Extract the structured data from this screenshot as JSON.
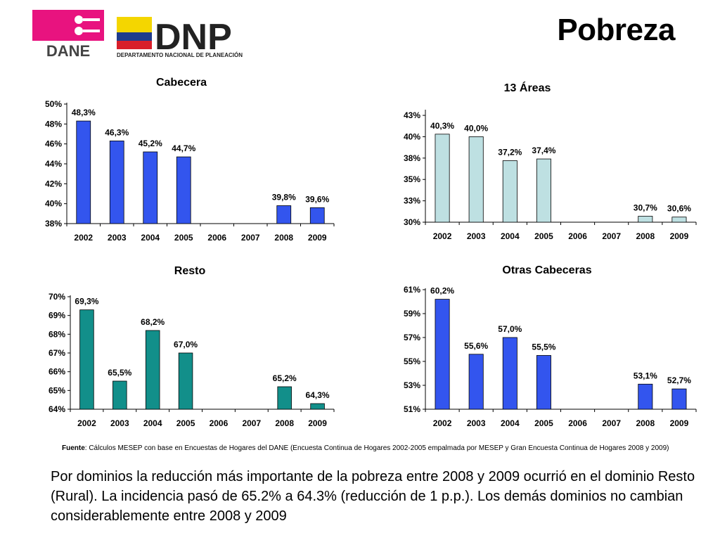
{
  "header": {
    "title": "Pobreza",
    "logo_dane_text": "DANE",
    "logo_dnp_text": "DNP",
    "logo_dnp_subtitle": "DEPARTAMENTO NACIONAL DE PLANEACIÓN"
  },
  "colors": {
    "blue": "#3355EE",
    "light_cyan": "#BEE0E2",
    "teal": "#128F8A",
    "dane_magenta": "#E8137F",
    "dnp_yellow": "#F4D600",
    "dnp_blue": "#1F3B8C",
    "dnp_red": "#D81E2A"
  },
  "chart_data": [
    {
      "type": "bar",
      "title": "Cabecera",
      "categories": [
        "2002",
        "2003",
        "2004",
        "2005",
        "2006",
        "2007",
        "2008",
        "2009"
      ],
      "values": [
        48.3,
        46.3,
        45.2,
        44.7,
        null,
        null,
        39.8,
        39.6
      ],
      "value_labels": [
        "48,3%",
        "46,3%",
        "45,2%",
        "44,7%",
        "",
        "",
        "39,8%",
        "39,6%"
      ],
      "ylim": [
        38,
        50
      ],
      "yticks": [
        38,
        40,
        42,
        44,
        46,
        48,
        50
      ],
      "ytick_labels": [
        "38%",
        "40%",
        "42%",
        "44%",
        "46%",
        "48%",
        "50%"
      ],
      "color": "#3355EE"
    },
    {
      "type": "bar",
      "title": "13 Áreas",
      "categories": [
        "2002",
        "2003",
        "2004",
        "2005",
        "2006",
        "2007",
        "2008",
        "2009"
      ],
      "values": [
        40.3,
        40.0,
        37.2,
        37.4,
        null,
        null,
        30.7,
        30.6
      ],
      "value_labels": [
        "40,3%",
        "40,0%",
        "37,2%",
        "37,4%",
        "",
        "",
        "30,7%",
        "30,6%"
      ],
      "ylim": [
        30,
        43
      ],
      "yticks": [
        30,
        32.5,
        35,
        37.5,
        40,
        42.5
      ],
      "ytick_labels": [
        "30%",
        "33%",
        "35%",
        "38%",
        "40%",
        "43%"
      ],
      "color": "#BEE0E2"
    },
    {
      "type": "bar",
      "title": "Resto",
      "categories": [
        "2002",
        "2003",
        "2004",
        "2005",
        "2006",
        "2007",
        "2008",
        "2009"
      ],
      "values": [
        69.3,
        65.5,
        68.2,
        67.0,
        null,
        null,
        65.2,
        64.3
      ],
      "value_labels": [
        "69,3%",
        "65,5%",
        "68,2%",
        "67,0%",
        "",
        "",
        "65,2%",
        "64,3%"
      ],
      "ylim": [
        64,
        70
      ],
      "yticks": [
        64,
        65,
        66,
        67,
        68,
        69,
        70
      ],
      "ytick_labels": [
        "64%",
        "65%",
        "66%",
        "67%",
        "68%",
        "69%",
        "70%"
      ],
      "color": "#128F8A"
    },
    {
      "type": "bar",
      "title": "Otras Cabeceras",
      "categories": [
        "2002",
        "2003",
        "2004",
        "2005",
        "2006",
        "2007",
        "2008",
        "2009"
      ],
      "values": [
        60.2,
        55.6,
        57.0,
        55.5,
        null,
        null,
        53.1,
        52.7
      ],
      "value_labels": [
        "60,2%",
        "55,6%",
        "57,0%",
        "55,5%",
        "",
        "",
        "53,1%",
        "52,7%"
      ],
      "ylim": [
        51,
        61
      ],
      "yticks": [
        51,
        53,
        55,
        57,
        59,
        61
      ],
      "ytick_labels": [
        "51%",
        "53%",
        "55%",
        "57%",
        "59%",
        "61%"
      ],
      "color": "#3355EE"
    }
  ],
  "source": {
    "label": "Fuente",
    "text": ": Cálculos MESEP con base en Encuestas de Hogares del DANE (Encuesta Continua de Hogares 2002-2005 empalmada por MESEP y Gran Encuesta Continua de Hogares 2008 y 2009)"
  },
  "summary": "Por dominios la reducción más importante de la pobreza entre 2008 y 2009 ocurrió en el dominio Resto (Rural). La incidencia pasó de 65.2% a 64.3% (reducción de 1 p.p.). Los demás dominios no cambian considerablemente entre 2008 y 2009"
}
